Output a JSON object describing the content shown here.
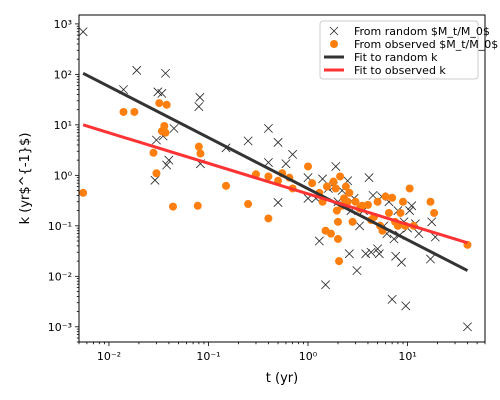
{
  "chart_data": {
    "type": "scatter",
    "xlabel": "t (yr)",
    "ylabel": "k (yr$^{-1}$)",
    "xscale": "log",
    "yscale": "log",
    "xlim": [
      0.005,
      60
    ],
    "ylim": [
      0.0005,
      1500
    ],
    "x_tick_labels": [
      "10⁻²",
      "10⁻¹",
      "10⁰",
      "10¹"
    ],
    "y_tick_labels": [
      "10⁻³",
      "10⁻²",
      "10⁻¹",
      "10⁰",
      "10¹",
      "10²",
      "10³"
    ],
    "x_ticks": [
      0.01,
      0.1,
      1,
      10
    ],
    "y_ticks": [
      0.001,
      0.01,
      0.1,
      1,
      10,
      100,
      1000
    ],
    "legend_position": "top-right",
    "colors": {
      "random_marker": "#222222",
      "observed_marker": "#ff7f0e",
      "fit_random": "#333333",
      "fit_observed": "#ff3333"
    },
    "series": [
      {
        "name": "From random $M_t/M_0$",
        "marker": "x",
        "points": [
          [
            0.0055,
            700
          ],
          [
            0.014,
            50
          ],
          [
            0.019,
            120
          ],
          [
            0.031,
            45
          ],
          [
            0.034,
            42
          ],
          [
            0.037,
            105
          ],
          [
            0.045,
            8.5
          ],
          [
            0.035,
            6
          ],
          [
            0.029,
            0.8
          ],
          [
            0.03,
            5
          ],
          [
            0.038,
            1.6
          ],
          [
            0.04,
            2
          ],
          [
            0.08,
            23
          ],
          [
            0.082,
            35
          ],
          [
            0.083,
            1.7
          ],
          [
            0.15,
            3.5
          ],
          [
            0.25,
            4.8
          ],
          [
            0.4,
            8.5
          ],
          [
            0.4,
            1.8
          ],
          [
            0.5,
            4.5
          ],
          [
            0.5,
            0.29
          ],
          [
            0.6,
            1.7
          ],
          [
            0.7,
            2.6
          ],
          [
            1.0,
            0.9
          ],
          [
            1.0,
            0.35
          ],
          [
            1.2,
            0.35
          ],
          [
            1.3,
            0.05
          ],
          [
            1.4,
            0.85
          ],
          [
            1.5,
            0.0068
          ],
          [
            1.6,
            0.55
          ],
          [
            1.8,
            0.6
          ],
          [
            1.9,
            1.5
          ],
          [
            2.0,
            0.3
          ],
          [
            2.2,
            0.5
          ],
          [
            2.3,
            0.25
          ],
          [
            2.5,
            0.78
          ],
          [
            2.6,
            0.028
          ],
          [
            2.7,
            0.2
          ],
          [
            2.9,
            0.35
          ],
          [
            3.1,
            0.013
          ],
          [
            3.3,
            0.1
          ],
          [
            3.6,
            0.2
          ],
          [
            3.8,
            0.028
          ],
          [
            4.1,
            0.9
          ],
          [
            4.3,
            0.03
          ],
          [
            4.5,
            0.4
          ],
          [
            5.0,
            0.035
          ],
          [
            5.2,
            0.028
          ],
          [
            5.5,
            0.38
          ],
          [
            5.8,
            0.1
          ],
          [
            6.2,
            0.07
          ],
          [
            6.5,
            0.3
          ],
          [
            7.0,
            0.0035
          ],
          [
            7.3,
            0.055
          ],
          [
            7.6,
            0.025
          ],
          [
            8.0,
            0.2
          ],
          [
            8.3,
            0.065
          ],
          [
            8.7,
            0.019
          ],
          [
            9.2,
            0.12
          ],
          [
            9.6,
            0.0026
          ],
          [
            10.0,
            0.09
          ],
          [
            10.5,
            0.2
          ],
          [
            11.0,
            0.25
          ],
          [
            12.0,
            0.11
          ],
          [
            13.0,
            0.07
          ],
          [
            17.0,
            0.022
          ],
          [
            17.5,
            0.12
          ],
          [
            19.0,
            0.06
          ],
          [
            40.0,
            0.001
          ]
        ]
      },
      {
        "name": "From observed $M_t/M_0$",
        "marker": "o",
        "points": [
          [
            0.0055,
            0.45
          ],
          [
            0.014,
            18
          ],
          [
            0.018,
            18
          ],
          [
            0.028,
            2.8
          ],
          [
            0.03,
            1.1
          ],
          [
            0.032,
            27
          ],
          [
            0.034,
            7.5
          ],
          [
            0.036,
            9.5
          ],
          [
            0.037,
            7
          ],
          [
            0.038,
            25
          ],
          [
            0.044,
            0.24
          ],
          [
            0.078,
            0.25
          ],
          [
            0.08,
            3.7
          ],
          [
            0.083,
            2.7
          ],
          [
            0.15,
            0.62
          ],
          [
            0.25,
            0.27
          ],
          [
            0.3,
            1.05
          ],
          [
            0.4,
            0.95
          ],
          [
            0.4,
            0.14
          ],
          [
            0.5,
            0.78
          ],
          [
            0.55,
            1.1
          ],
          [
            0.65,
            0.9
          ],
          [
            0.7,
            0.55
          ],
          [
            1.0,
            1.5
          ],
          [
            1.1,
            0.7
          ],
          [
            1.3,
            0.45
          ],
          [
            1.4,
            0.3
          ],
          [
            1.5,
            0.08
          ],
          [
            1.55,
            0.6
          ],
          [
            1.7,
            0.07
          ],
          [
            1.8,
            0.75
          ],
          [
            1.9,
            0.55
          ],
          [
            1.95,
            0.2
          ],
          [
            2.0,
            0.12
          ],
          [
            2.0,
            0.055
          ],
          [
            2.05,
            0.02
          ],
          [
            2.1,
            0.95
          ],
          [
            2.2,
            0.25
          ],
          [
            2.3,
            0.35
          ],
          [
            2.4,
            0.6
          ],
          [
            2.5,
            0.3
          ],
          [
            2.6,
            0.45
          ],
          [
            2.8,
            0.12
          ],
          [
            3.0,
            0.3
          ],
          [
            3.3,
            0.22
          ],
          [
            3.5,
            0.25
          ],
          [
            4.0,
            0.26
          ],
          [
            4.3,
            0.13
          ],
          [
            4.6,
            0.15
          ],
          [
            5.0,
            0.3
          ],
          [
            5.3,
            0.1
          ],
          [
            5.6,
            0.08
          ],
          [
            6.0,
            0.38
          ],
          [
            6.5,
            0.18
          ],
          [
            7.0,
            0.36
          ],
          [
            7.5,
            0.12
          ],
          [
            8.0,
            0.1
          ],
          [
            8.5,
            0.18
          ],
          [
            9.0,
            0.3
          ],
          [
            9.5,
            0.1
          ],
          [
            10.5,
            0.55
          ],
          [
            11.5,
            0.1
          ],
          [
            17.0,
            0.3
          ],
          [
            18.5,
            0.18
          ],
          [
            40.0,
            0.042
          ]
        ]
      }
    ],
    "fits": [
      {
        "name": "Fit to random k",
        "x": [
          0.0055,
          40.0
        ],
        "y": [
          105,
          0.013
        ]
      },
      {
        "name": "Fit to observed k",
        "x": [
          0.0055,
          40.0
        ],
        "y": [
          10,
          0.046
        ]
      }
    ]
  }
}
